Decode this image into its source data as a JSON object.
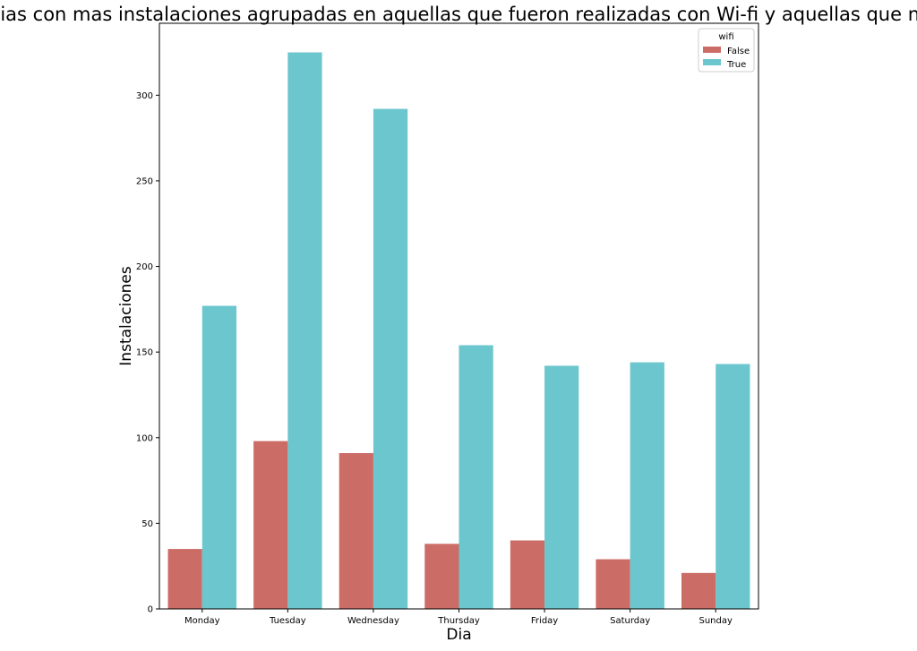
{
  "chart_data": {
    "type": "bar",
    "title": "Dias con mas instalaciones agrupadas en aquellas que fueron realizadas con Wi-fi y aquellas que no",
    "xlabel": "Dia",
    "ylabel": "Instalaciones",
    "categories": [
      "Monday",
      "Tuesday",
      "Wednesday",
      "Thursday",
      "Friday",
      "Saturday",
      "Sunday"
    ],
    "ylim": [
      0,
      342
    ],
    "yticks": [
      0,
      50,
      100,
      150,
      200,
      250,
      300
    ],
    "grid": false,
    "legend": {
      "title": "wifi",
      "placement": "top-right"
    },
    "series": [
      {
        "name": "False",
        "color": "#cc6c66",
        "values": [
          35,
          98,
          91,
          38,
          40,
          29,
          21
        ]
      },
      {
        "name": "True",
        "color": "#6bc6cd",
        "values": [
          177,
          325,
          292,
          154,
          142,
          144,
          143
        ]
      }
    ]
  }
}
